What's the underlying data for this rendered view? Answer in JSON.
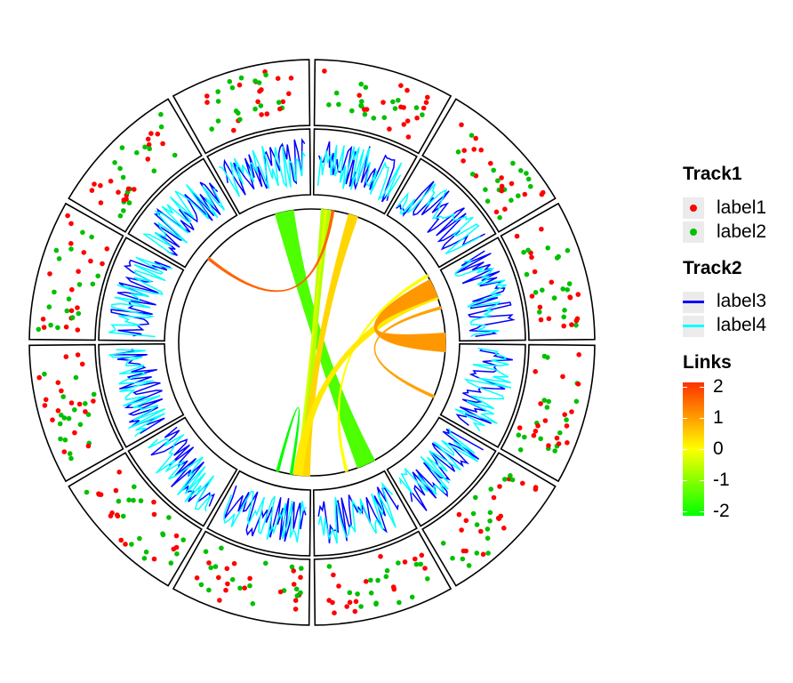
{
  "chart_data": {
    "type": "circos",
    "sectors": 12,
    "tracks": [
      {
        "name": "Track1",
        "type": "scatter",
        "series": [
          {
            "name": "label1",
            "color": "#ff0000"
          },
          {
            "name": "label2",
            "color": "#00c000"
          }
        ]
      },
      {
        "name": "Track2",
        "type": "line",
        "series": [
          {
            "name": "label3",
            "color": "#0000ff"
          },
          {
            "name": "label4",
            "color": "#00ffff"
          }
        ]
      }
    ],
    "links": {
      "name": "Links",
      "scale": {
        "min": -2,
        "max": 2,
        "colors": [
          "#00ff00",
          "#ffff00",
          "#ff3000"
        ]
      },
      "items": [
        {
          "from_sector": 11.6,
          "to_sector": 5.2,
          "value": -1.4,
          "width": "wide"
        },
        {
          "from_sector": 0.2,
          "to_sector": 6.1,
          "value": -0.6,
          "width": "medium"
        },
        {
          "from_sector": 0.2,
          "to_sector": 6.2,
          "value": -0.3,
          "width": "thin"
        },
        {
          "from_sector": 0.6,
          "to_sector": 6.1,
          "value": 0.4,
          "width": "medium"
        },
        {
          "from_sector": 0.3,
          "to_sector": 10.3,
          "value": 1.5,
          "width": "thin"
        },
        {
          "from_sector": 2.0,
          "to_sector": 5.5,
          "value": 0.0,
          "width": "thin"
        },
        {
          "from_sector": 2.3,
          "to_sector": 6.2,
          "value": 0.2,
          "width": "medium"
        },
        {
          "from_sector": 3.0,
          "to_sector": 2.2,
          "value": 1.0,
          "width": "wide"
        },
        {
          "from_sector": 2.5,
          "to_sector": 3.8,
          "value": 0.9,
          "width": "thin"
        },
        {
          "from_sector": 6.3,
          "to_sector": 6.5,
          "value": -2.0,
          "width": "thin"
        }
      ]
    },
    "legend": {
      "placement": "right",
      "groups": [
        {
          "title": "Track1",
          "items": [
            {
              "label": "label1",
              "color": "#ff0000"
            },
            {
              "label": "label2",
              "color": "#00c000"
            }
          ]
        },
        {
          "title": "Track2",
          "items": [
            {
              "label": "label3",
              "color": "#0000ff"
            },
            {
              "label": "label4",
              "color": "#00ffff"
            }
          ]
        },
        {
          "title": "Links",
          "ticks": [
            "2",
            "1",
            "0",
            "-1",
            "-2"
          ]
        }
      ]
    }
  }
}
